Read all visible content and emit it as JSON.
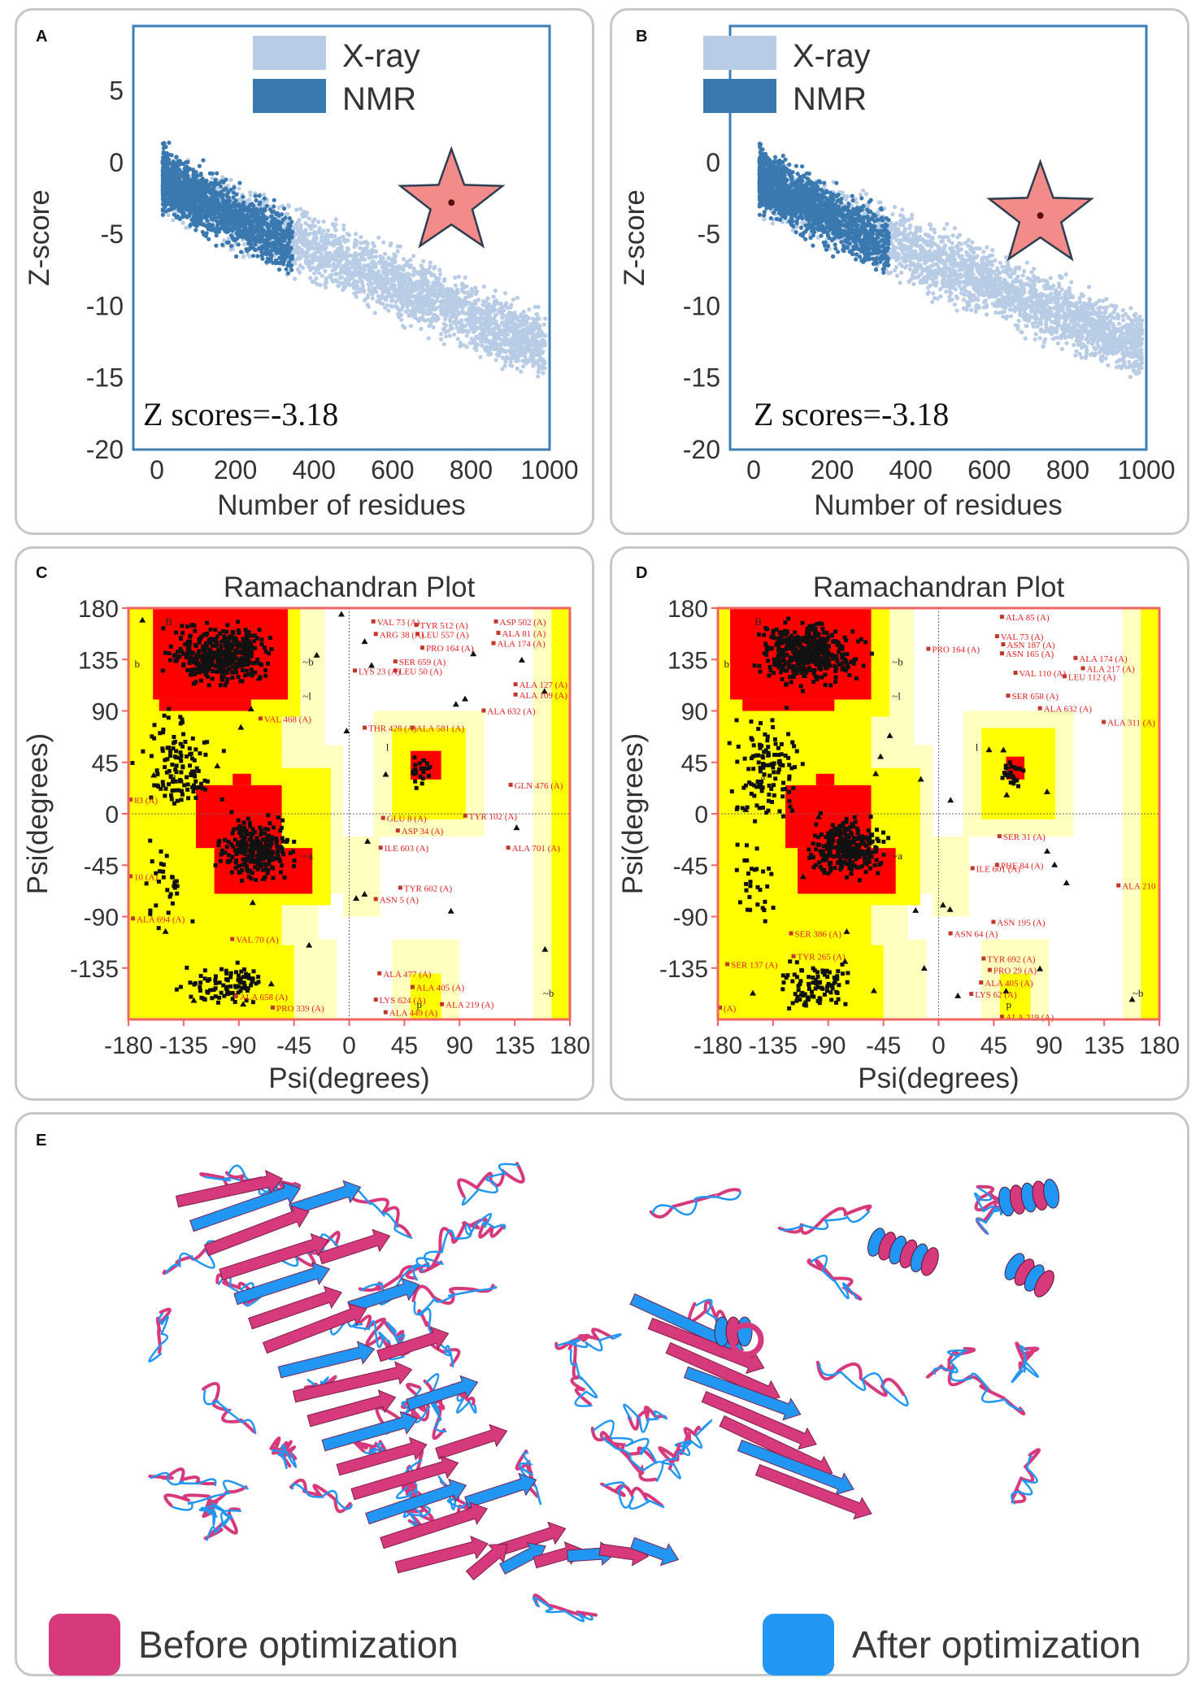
{
  "panels": {
    "A": {
      "label": "A"
    },
    "B": {
      "label": "B"
    },
    "C": {
      "label": "C"
    },
    "D": {
      "label": "D"
    },
    "E": {
      "label": "E"
    }
  },
  "colors": {
    "xray": "#b8cce6",
    "nmr": "#3a78b0",
    "frame_zscore": "#3c7fb8",
    "star_fill": "#f48b8b",
    "star_stroke": "#2c3e50",
    "core": "#ff0000",
    "allowed": "#ffff00",
    "generous": "#ffffc0",
    "frame_rama": "#f06464",
    "before": "#d63a7c",
    "after": "#2196f3"
  },
  "chart_data": [
    {
      "id": "A",
      "type": "scatter",
      "xlabel": "Number of residues",
      "ylabel": "Z-score",
      "xlim": [
        -60,
        1000
      ],
      "ylim": [
        -20,
        9.5
      ],
      "xticks": [
        0,
        200,
        400,
        600,
        800,
        1000
      ],
      "yticks": [
        5,
        0,
        -5,
        -10,
        -15,
        -20
      ],
      "xtick_labels": [
        "0",
        "200",
        "400",
        "600",
        "800",
        "1000"
      ],
      "ytick_labels": [
        "5",
        "0",
        "-5",
        "-10",
        "-15",
        "-20"
      ],
      "legend": [
        {
          "name": "X-ray"
        },
        {
          "name": "NMR"
        }
      ],
      "annotation": "Z scores=-3.18",
      "highlight": {
        "x": 750,
        "y": -2.8
      }
    },
    {
      "id": "B",
      "type": "scatter",
      "xlabel": "Number of residues",
      "ylabel": "Z-score",
      "xlim": [
        -60,
        1000
      ],
      "ylim": [
        -20,
        9.5
      ],
      "xticks": [
        0,
        200,
        400,
        600,
        800,
        1000
      ],
      "yticks": [
        5,
        0,
        -5,
        -10,
        -15,
        -20
      ],
      "xtick_labels": [
        "0",
        "200",
        "400",
        "600",
        "800",
        "1000"
      ],
      "ytick_labels": [
        "5",
        "0",
        "-5",
        "-10",
        "-15",
        "-20"
      ],
      "legend": [
        {
          "name": "X-ray"
        },
        {
          "name": "NMR"
        }
      ],
      "annotation": "Z scores=-3.18",
      "highlight": {
        "x": 730,
        "y": -3.7
      }
    },
    {
      "id": "C",
      "type": "scatter",
      "title": "Ramachandran Plot",
      "xlabel": "Psi(degrees)",
      "ylabel": "Psi(degrees)",
      "xlim": [
        -180,
        180
      ],
      "ylim": [
        -180,
        180
      ],
      "xticks": [
        -180,
        -135,
        -90,
        -45,
        0,
        45,
        90,
        135,
        180
      ],
      "yticks": [
        180,
        135,
        90,
        45,
        0,
        -45,
        -90,
        -135
      ],
      "xtick_labels": [
        "-180",
        "-135",
        "-90",
        "-45",
        "0",
        "45",
        "90",
        "135",
        "180"
      ],
      "ytick_labels": [
        "180",
        "135",
        "90",
        "45",
        "0",
        "-45",
        "-90",
        "-135"
      ],
      "region_labels": [
        "B",
        "b",
        "a",
        "~b",
        "~l",
        "l",
        "~a",
        "p",
        "~b"
      ],
      "residue_labels": [
        {
          "text": "VAL 73 (A)",
          "x": 20,
          "y": 168
        },
        {
          "text": "TYR 512 (A)",
          "x": 55,
          "y": 165
        },
        {
          "text": "ARG 38 (A)",
          "x": 22,
          "y": 157
        },
        {
          "text": "LEU 557 (A)",
          "x": 56,
          "y": 157
        },
        {
          "text": "ASP 502 (A)",
          "x": 120,
          "y": 168
        },
        {
          "text": "ALA 81 (A)",
          "x": 122,
          "y": 158
        },
        {
          "text": "ALA 174 (A)",
          "x": 118,
          "y": 149
        },
        {
          "text": "PRO 164 (A)",
          "x": 60,
          "y": 145
        },
        {
          "text": "SER 659 (A)",
          "x": 38,
          "y": 133
        },
        {
          "text": "LYS 23 (A)",
          "x": 5,
          "y": 125
        },
        {
          "text": "LEU 50 (A)",
          "x": 38,
          "y": 125
        },
        {
          "text": "ALA 127 (A)",
          "x": 136,
          "y": 113
        },
        {
          "text": "ALA 109 (A)",
          "x": 136,
          "y": 104
        },
        {
          "text": "VAL 468 (A)",
          "x": -72,
          "y": 83
        },
        {
          "text": "THR 428 (A)",
          "x": 13,
          "y": 75
        },
        {
          "text": "ALA 581 (A)",
          "x": 52,
          "y": 75
        },
        {
          "text": "ALA 632 (A)",
          "x": 110,
          "y": 90
        },
        {
          "text": "GLN 476 (A)",
          "x": 132,
          "y": 25
        },
        {
          "text": "83 (A)",
          "x": -178,
          "y": 12
        },
        {
          "text": "GLU 8 (A)",
          "x": 28,
          "y": -4
        },
        {
          "text": "TYR 102 (A)",
          "x": 95,
          "y": -2
        },
        {
          "text": "ASP 34 (A)",
          "x": 40,
          "y": -15
        },
        {
          "text": "ILE 603 (A)",
          "x": 26,
          "y": -30
        },
        {
          "text": "ALA 701 (A)",
          "x": 130,
          "y": -30
        },
        {
          "text": "TYR 602 (A)",
          "x": 42,
          "y": -65
        },
        {
          "text": "ASN 5 (A)",
          "x": 22,
          "y": -75
        },
        {
          "text": "ALA 694 (A)",
          "x": -176,
          "y": -92
        },
        {
          "text": "VAL 70 (A)",
          "x": -95,
          "y": -110
        },
        {
          "text": "ALA 477 (A)",
          "x": 25,
          "y": -140
        },
        {
          "text": "ALA 405 (A)",
          "x": 52,
          "y": -152
        },
        {
          "text": "ALA 658 (A)",
          "x": -92,
          "y": -160
        },
        {
          "text": "LYS 624 (A)",
          "x": 22,
          "y": -163
        },
        {
          "text": "ALA 219 (A)",
          "x": 76,
          "y": -167
        },
        {
          "text": "PRO 339 (A)",
          "x": -62,
          "y": -170
        },
        {
          "text": "ALA 449 (A)",
          "x": 30,
          "y": -174
        },
        {
          "text": "10 (A)",
          "x": -178,
          "y": -55
        }
      ]
    },
    {
      "id": "D",
      "type": "scatter",
      "title": "Ramachandran Plot",
      "xlabel": "Psi(degrees)",
      "ylabel": "Psi(degrees)",
      "xlim": [
        -180,
        180
      ],
      "ylim": [
        -180,
        180
      ],
      "xticks": [
        -180,
        -135,
        -90,
        -45,
        0,
        45,
        90,
        135,
        180
      ],
      "yticks": [
        180,
        135,
        90,
        45,
        0,
        -45,
        -90,
        -135
      ],
      "xtick_labels": [
        "-180",
        "-135",
        "-90",
        "-45",
        "0",
        "45",
        "90",
        "135",
        "180"
      ],
      "ytick_labels": [
        "180",
        "135",
        "90",
        "45",
        "0",
        "-45",
        "-90",
        "-135"
      ],
      "region_labels": [
        "B",
        "b",
        "a",
        "~b",
        "~l",
        "l",
        "~a",
        "p",
        "~b"
      ],
      "residue_labels": [
        {
          "text": "ALA 85 (A)",
          "x": 52,
          "y": 172
        },
        {
          "text": "VAL 73 (A)",
          "x": 48,
          "y": 155
        },
        {
          "text": "PRO 164 (A)",
          "x": -8,
          "y": 144
        },
        {
          "text": "ASN 187 (A)",
          "x": 53,
          "y": 148
        },
        {
          "text": "ASN 165 (A)",
          "x": 52,
          "y": 140
        },
        {
          "text": "ALA 174 (A)",
          "x": 112,
          "y": 136
        },
        {
          "text": "ALA 217 (A)",
          "x": 118,
          "y": 127
        },
        {
          "text": "VAL 110 (A)",
          "x": 63,
          "y": 123
        },
        {
          "text": "LEU 112 (A)",
          "x": 103,
          "y": 120
        },
        {
          "text": "SER 658 (A)",
          "x": 57,
          "y": 103
        },
        {
          "text": "ALA 632 (A)",
          "x": 83,
          "y": 92
        },
        {
          "text": "ALA 311 (A)",
          "x": 135,
          "y": 80
        },
        {
          "text": "SER 31 (A)",
          "x": 50,
          "y": -20
        },
        {
          "text": "ILE 601 (A)",
          "x": 28,
          "y": -48
        },
        {
          "text": "PHE 84 (A)",
          "x": 48,
          "y": -45
        },
        {
          "text": "ALA 210",
          "x": 147,
          "y": -63
        },
        {
          "text": "ASN 195 (A)",
          "x": 45,
          "y": -95
        },
        {
          "text": "SER 386 (A)",
          "x": -120,
          "y": -105
        },
        {
          "text": "ASN 64 (A)",
          "x": 10,
          "y": -105
        },
        {
          "text": "TYR 692 (A)",
          "x": 37,
          "y": -127
        },
        {
          "text": "PRO 29 (A)",
          "x": 42,
          "y": -137
        },
        {
          "text": "SER 137 (A)",
          "x": -172,
          "y": -132
        },
        {
          "text": "TYR 265 (A)",
          "x": -118,
          "y": -125
        },
        {
          "text": "ALA 405 (A)",
          "x": 35,
          "y": -148
        },
        {
          "text": "LYS 62 (A)",
          "x": 27,
          "y": -158
        },
        {
          "text": "ALA 219 (A)",
          "x": 52,
          "y": -178
        },
        {
          "text": "(A)",
          "x": -178,
          "y": -170
        }
      ]
    }
  ],
  "structure": {
    "legend": [
      {
        "name": "Before optimization"
      },
      {
        "name": "After optimization"
      }
    ]
  }
}
